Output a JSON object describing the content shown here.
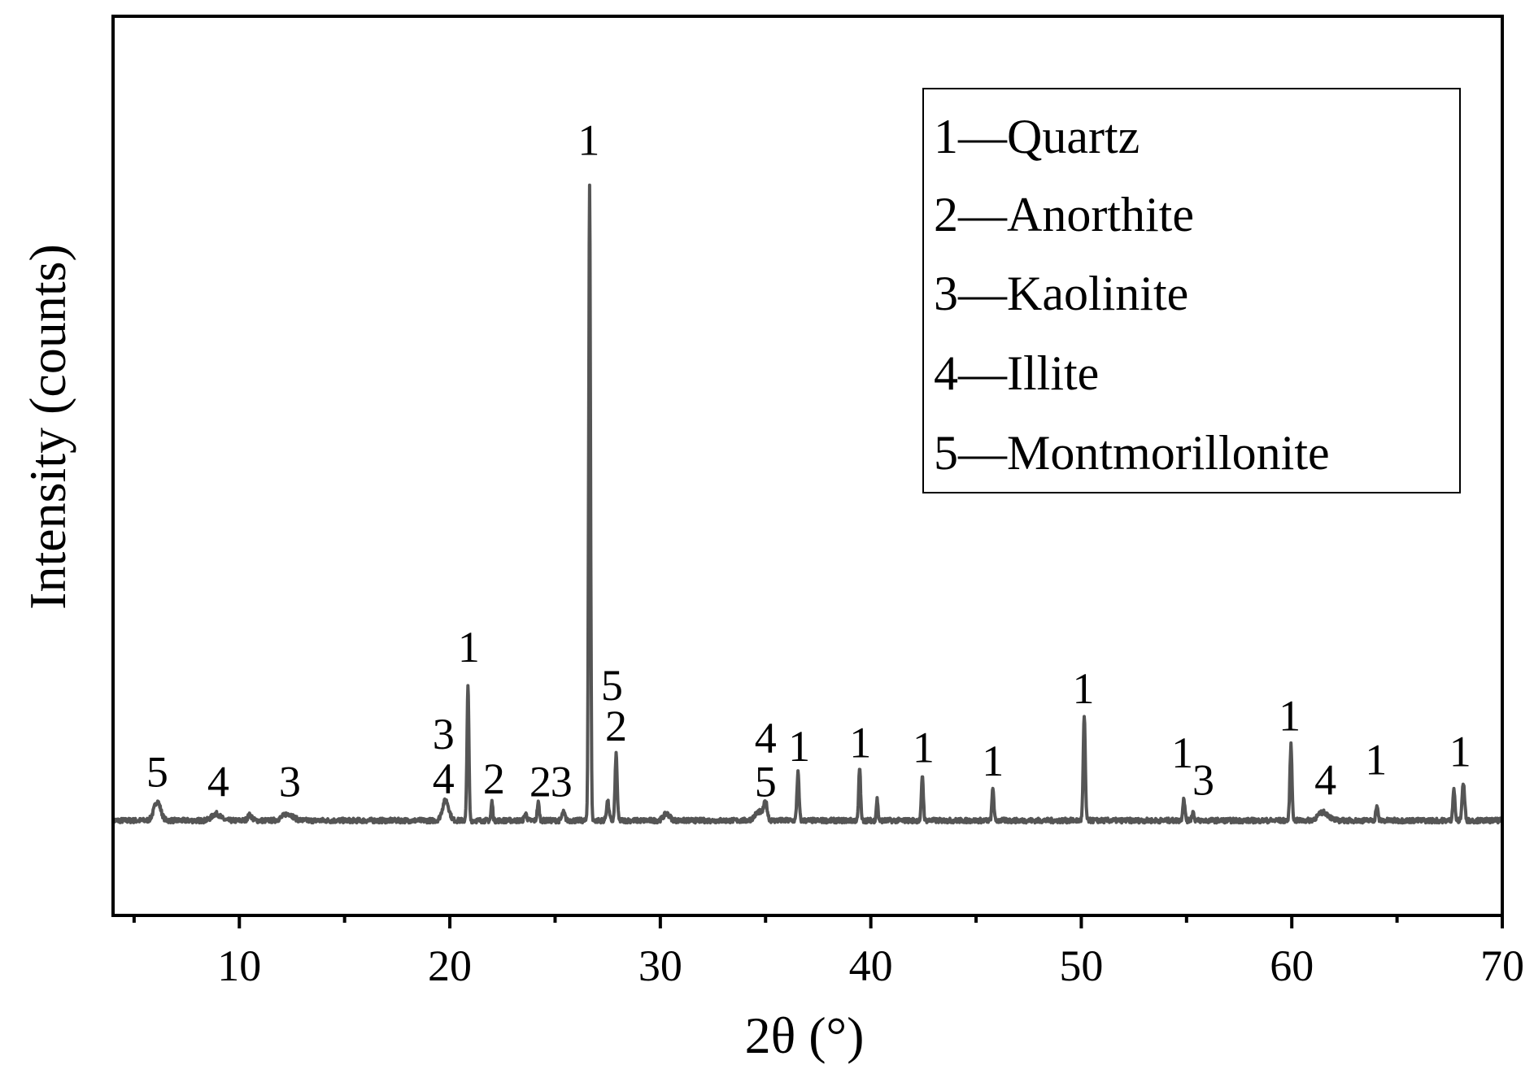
{
  "chart_data": {
    "type": "line",
    "xlabel": "2θ (°)",
    "ylabel": "Intensity (counts)",
    "xlim": [
      4,
      70
    ],
    "ylim": [
      0,
      1000
    ],
    "x_ticks": [
      "10",
      "20",
      "30",
      "40",
      "50",
      "60",
      "70"
    ],
    "x_tick_values": [
      10,
      20,
      30,
      40,
      50,
      60,
      70
    ],
    "x_minor_ticks": [
      5,
      15,
      25,
      35,
      45,
      55,
      65
    ],
    "y_ticks_shown": false,
    "baseline": 62,
    "peaks": [
      {
        "x": 6.1,
        "y": 90,
        "w": 0.16
      },
      {
        "x": 8.9,
        "y": 72,
        "w": 0.2
      },
      {
        "x": 10.5,
        "y": 70,
        "w": 0.1
      },
      {
        "x": 12.3,
        "y": 72,
        "w": 0.25
      },
      {
        "x": 19.8,
        "y": 92,
        "w": 0.15
      },
      {
        "x": 20.86,
        "y": 262,
        "w": 0.045
      },
      {
        "x": 22.0,
        "y": 90,
        "w": 0.04
      },
      {
        "x": 23.6,
        "y": 72,
        "w": 0.06
      },
      {
        "x": 24.2,
        "y": 88,
        "w": 0.05
      },
      {
        "x": 25.4,
        "y": 74,
        "w": 0.07
      },
      {
        "x": 26.64,
        "y": 1000,
        "w": 0.045
      },
      {
        "x": 27.5,
        "y": 90,
        "w": 0.06
      },
      {
        "x": 27.9,
        "y": 160,
        "w": 0.05
      },
      {
        "x": 30.3,
        "y": 72,
        "w": 0.15
      },
      {
        "x": 34.7,
        "y": 75,
        "w": 0.2
      },
      {
        "x": 35.0,
        "y": 86,
        "w": 0.08
      },
      {
        "x": 36.54,
        "y": 133,
        "w": 0.05
      },
      {
        "x": 39.47,
        "y": 140,
        "w": 0.045
      },
      {
        "x": 40.3,
        "y": 94,
        "w": 0.04
      },
      {
        "x": 42.45,
        "y": 129,
        "w": 0.045
      },
      {
        "x": 45.8,
        "y": 110,
        "w": 0.045
      },
      {
        "x": 50.14,
        "y": 214,
        "w": 0.05
      },
      {
        "x": 54.87,
        "y": 95,
        "w": 0.05
      },
      {
        "x": 55.3,
        "y": 75,
        "w": 0.05
      },
      {
        "x": 59.96,
        "y": 173,
        "w": 0.05
      },
      {
        "x": 61.5,
        "y": 74,
        "w": 0.25
      },
      {
        "x": 64.04,
        "y": 84,
        "w": 0.05
      },
      {
        "x": 67.7,
        "y": 108,
        "w": 0.05
      },
      {
        "x": 68.15,
        "y": 117,
        "w": 0.06
      }
    ],
    "annotations": [
      {
        "text": "5",
        "x": 6.1,
        "y": 112
      },
      {
        "text": "4",
        "x": 9.0,
        "y": 98
      },
      {
        "text": "3",
        "x": 12.4,
        "y": 98
      },
      {
        "text": "4",
        "x": 19.7,
        "y": 102
      },
      {
        "text": "3",
        "x": 19.7,
        "y": 168
      },
      {
        "text": "1",
        "x": 20.9,
        "y": 296
      },
      {
        "text": "2",
        "x": 22.1,
        "y": 102
      },
      {
        "text": "2",
        "x": 24.3,
        "y": 98
      },
      {
        "text": "3",
        "x": 25.3,
        "y": 98
      },
      {
        "text": "1",
        "x": 26.6,
        "y": 1044
      },
      {
        "text": "5",
        "x": 27.7,
        "y": 240
      },
      {
        "text": "2",
        "x": 27.9,
        "y": 180
      },
      {
        "text": "4",
        "x": 35.0,
        "y": 162
      },
      {
        "text": "5",
        "x": 35.0,
        "y": 98
      },
      {
        "text": "1",
        "x": 36.6,
        "y": 150
      },
      {
        "text": "1",
        "x": 39.5,
        "y": 155
      },
      {
        "text": "1",
        "x": 42.5,
        "y": 148
      },
      {
        "text": "1",
        "x": 45.8,
        "y": 128
      },
      {
        "text": "1",
        "x": 50.1,
        "y": 235
      },
      {
        "text": "1",
        "x": 54.8,
        "y": 140
      },
      {
        "text": "3",
        "x": 55.8,
        "y": 100
      },
      {
        "text": "1",
        "x": 59.9,
        "y": 195
      },
      {
        "text": "4",
        "x": 61.6,
        "y": 100
      },
      {
        "text": "1",
        "x": 64.0,
        "y": 130
      },
      {
        "text": "1",
        "x": 68.0,
        "y": 142
      }
    ],
    "legend": {
      "placement": "top-right",
      "entries": [
        "1—Quartz",
        "2—Anorthite",
        "3—Kaolinite",
        "4—Illite",
        "5—Montmorillonite"
      ]
    },
    "line_color": "#555555",
    "grid": false
  }
}
